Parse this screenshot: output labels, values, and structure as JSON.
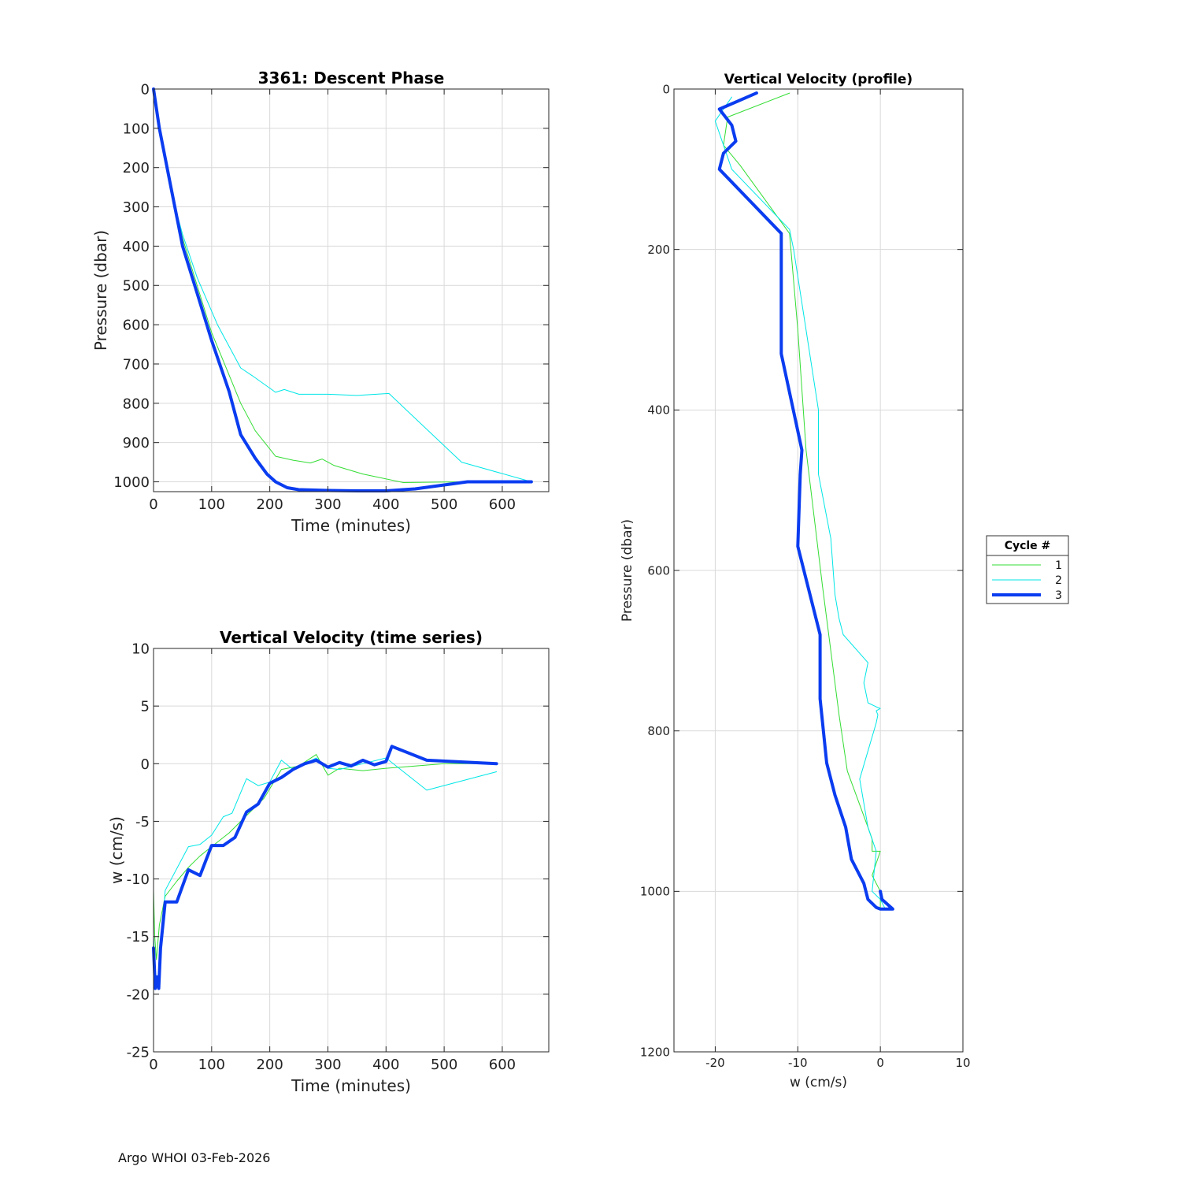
{
  "footer": "Argo WHOI 03-Feb-2026",
  "colors": {
    "cycle1": "#33dd33",
    "cycle2": "#00e6e6",
    "cycle3": "#0a3cf0",
    "grid": "#d9d9d9",
    "axis": "#262626"
  },
  "legend": {
    "title": "Cycle #",
    "entries": [
      "1",
      "2",
      "3"
    ]
  },
  "chart_data": [
    {
      "id": "descent",
      "type": "line",
      "title": "3361: Descent Phase",
      "xlabel": "Time (minutes)",
      "ylabel": "Pressure (dbar)",
      "xlim": [
        0,
        680
      ],
      "ylim": [
        0,
        1025
      ],
      "y_reversed": true,
      "xticks": [
        0,
        100,
        200,
        300,
        400,
        500,
        600
      ],
      "yticks": [
        0,
        100,
        200,
        300,
        400,
        500,
        600,
        700,
        800,
        900,
        1000
      ],
      "grid": true,
      "series": [
        {
          "name": "1",
          "x": [
            0,
            10,
            30,
            50,
            100,
            150,
            175,
            210,
            240,
            270,
            290,
            310,
            360,
            430,
            530,
            650
          ],
          "y": [
            0,
            100,
            250,
            380,
            620,
            800,
            870,
            935,
            945,
            952,
            942,
            958,
            980,
            1002,
            1000,
            1000
          ]
        },
        {
          "name": "2",
          "x": [
            0,
            10,
            30,
            50,
            75,
            110,
            150,
            170,
            210,
            225,
            250,
            300,
            350,
            405,
            530,
            650
          ],
          "y": [
            0,
            100,
            260,
            370,
            480,
            600,
            710,
            730,
            772,
            765,
            777,
            777,
            780,
            775,
            950,
            1000
          ]
        },
        {
          "name": "3",
          "x": [
            0,
            10,
            30,
            50,
            75,
            100,
            130,
            150,
            175,
            195,
            210,
            230,
            250,
            300,
            350,
            400,
            450,
            500,
            540,
            650
          ],
          "y": [
            0,
            100,
            250,
            400,
            520,
            640,
            770,
            880,
            940,
            980,
            1000,
            1015,
            1020,
            1022,
            1023,
            1023,
            1018,
            1008,
            1000,
            1000
          ]
        }
      ]
    },
    {
      "id": "vv_time",
      "type": "line",
      "title": "Vertical Velocity (time series)",
      "xlabel": "Time (minutes)",
      "ylabel": "w (cm/s)",
      "xlim": [
        0,
        680
      ],
      "ylim": [
        -25,
        10
      ],
      "y_reversed": false,
      "xticks": [
        0,
        100,
        200,
        300,
        400,
        500,
        600
      ],
      "yticks": [
        10,
        5,
        0,
        -5,
        -10,
        -15,
        -20,
        -25
      ],
      "grid": true,
      "series": [
        {
          "name": "1",
          "x": [
            0,
            2,
            5,
            10,
            20,
            40,
            60,
            80,
            100,
            130,
            160,
            190,
            220,
            250,
            280,
            300,
            320,
            360,
            400,
            450,
            500,
            550,
            590
          ],
          "y": [
            -11,
            -15,
            -17,
            -14,
            -11.5,
            -10.2,
            -9,
            -8,
            -7.2,
            -6,
            -4.5,
            -3,
            -0.5,
            -0.2,
            0.8,
            -1,
            -0.4,
            -0.6,
            -0.4,
            -0.2,
            0,
            0,
            0
          ]
        },
        {
          "name": "2",
          "x": [
            0,
            3,
            8,
            20,
            60,
            80,
            100,
            120,
            135,
            160,
            180,
            200,
            220,
            240,
            280,
            300,
            320,
            360,
            400,
            470,
            590
          ],
          "y": [
            -15,
            -18,
            -19.5,
            -11,
            -7.2,
            -7,
            -6.2,
            -4.6,
            -4.3,
            -1.3,
            -1.9,
            -1.6,
            0.3,
            -0.5,
            0.5,
            -0.4,
            -0.5,
            0,
            0.5,
            -2.3,
            -0.7
          ]
        },
        {
          "name": "3",
          "x": [
            0,
            3,
            6,
            9,
            12,
            20,
            40,
            60,
            80,
            100,
            120,
            140,
            160,
            180,
            200,
            220,
            240,
            260,
            280,
            300,
            320,
            340,
            360,
            380,
            400,
            410,
            470,
            590
          ],
          "y": [
            -16,
            -19.5,
            -18.5,
            -19.5,
            -16,
            -12,
            -12,
            -9.2,
            -9.7,
            -7.1,
            -7.1,
            -6.4,
            -4.2,
            -3.5,
            -1.7,
            -1.2,
            -0.5,
            0,
            0.3,
            -0.3,
            0.1,
            -0.2,
            0.3,
            -0.1,
            0.2,
            1.5,
            0.3,
            0
          ]
        }
      ]
    },
    {
      "id": "vv_profile",
      "type": "line",
      "title": "Vertical Velocity (profile)",
      "xlabel": "w (cm/s)",
      "ylabel": "Pressure (dbar)",
      "xlim": [
        -25,
        10
      ],
      "ylim": [
        0,
        1200
      ],
      "y_reversed": true,
      "xticks": [
        -20,
        -10,
        0,
        10
      ],
      "yticks": [
        0,
        200,
        400,
        600,
        800,
        1000,
        1200
      ],
      "grid": true,
      "series": [
        {
          "name": "1",
          "x": [
            -11,
            -18.5,
            -19,
            -17,
            -11,
            -10,
            -9,
            -7,
            -5,
            -4,
            -1.5,
            -1,
            -1,
            0,
            -1,
            0,
            0
          ],
          "y": [
            5,
            35,
            70,
            95,
            180,
            300,
            450,
            620,
            780,
            850,
            920,
            935,
            950,
            950,
            980,
            1000,
            1020
          ]
        },
        {
          "name": "2",
          "x": [
            -18,
            -20,
            -18,
            -11,
            -10.5,
            -7.5,
            -7.5,
            -6,
            -5.5,
            -5,
            -4.5,
            -1.5,
            -2,
            -1.5,
            -0.5,
            0,
            -0.5,
            -0.3,
            -0.5,
            -2.5,
            -1.5,
            -0.5,
            -1,
            0,
            0.5
          ],
          "y": [
            10,
            40,
            100,
            175,
            200,
            400,
            480,
            560,
            630,
            660,
            680,
            715,
            740,
            765,
            770,
            772,
            775,
            780,
            790,
            860,
            920,
            950,
            1000,
            1010,
            1020
          ]
        },
        {
          "name": "3",
          "x": [
            -15,
            -19.5,
            -18,
            -17.5,
            -19,
            -19.5,
            -12,
            -12,
            -12,
            -9.5,
            -9.7,
            -10,
            -7.3,
            -7.3,
            -6.5,
            -5.5,
            -4.2,
            -3.5,
            -2,
            -1.5,
            -0.5,
            0,
            1.5,
            0.2,
            0
          ],
          "y": [
            5,
            25,
            45,
            65,
            80,
            100,
            180,
            200,
            330,
            450,
            480,
            570,
            680,
            760,
            840,
            880,
            920,
            960,
            990,
            1010,
            1020,
            1022,
            1022,
            1010,
            1000
          ]
        }
      ]
    }
  ]
}
